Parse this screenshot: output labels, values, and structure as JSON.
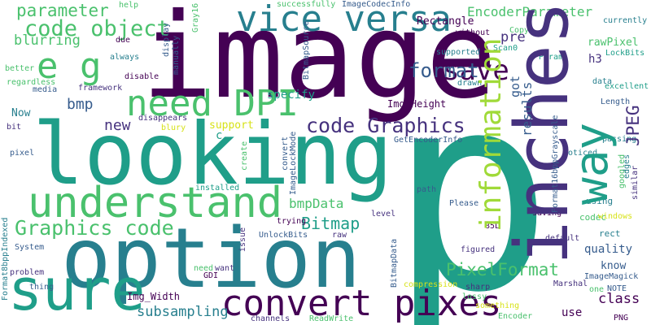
{
  "colors": {
    "purple": "#440154",
    "indigo": "#46327e",
    "blue": "#365c8d",
    "steel": "#277f8e",
    "teal": "#1f9e89",
    "green": "#4ac16d",
    "lime": "#a0da39",
    "yellow": "#d7e219"
  },
  "words": {
    "w0": "p",
    "w1": "image",
    "w2": "looking",
    "w3": "option",
    "w4": "inches",
    "w5": "sure",
    "w6": "understand",
    "w7": "way",
    "w8": "convert pixes",
    "w9": "vice versa",
    "w10": "information",
    "w11": "need DPI",
    "w12": "e g",
    "w13": "save",
    "w14": "code object",
    "w15": "parameter",
    "w16": "format",
    "w17": "code Graphics",
    "w18": "Graphics code",
    "w19": "PixelFormat",
    "w20": "EncoderParameter",
    "w21": "bmpData",
    "w22": "Bitmap",
    "w23": "JPEG",
    "w24": "new",
    "w25": "bmp",
    "w26": "blurring",
    "w27": "pre",
    "w28": "rawPixel",
    "w29": "subsampling",
    "w30": "Img_Height",
    "w31": "Img_Width",
    "w32": "Rectangle",
    "w33": "specify",
    "w34": "results",
    "w35": "got",
    "w36": "class",
    "w37": "quality",
    "w38": "know",
    "w39": "Now",
    "w40": "support",
    "w41": "codec",
    "w42": "using",
    "w43": "rect",
    "w44": "convert",
    "w45": "GetEncoderInfo",
    "w46": "Gray16",
    "w47": "ImageCodecInfo",
    "w48": "successfully",
    "w49": "help",
    "w50": "display",
    "w51": "manually",
    "w52": "due",
    "w53": "always",
    "w54": "disable",
    "w55": "framework",
    "w56": "media",
    "w57": "regardless",
    "w58": "better",
    "w59": "bit",
    "w60": "pixel",
    "w61": "BitmapSource",
    "w62": "supported",
    "w63": "Scan0",
    "w64": "without",
    "w65": "Copy",
    "w66": "Param",
    "w67": "currently",
    "w68": "LockBits",
    "w69": "h3",
    "w70": "excellent",
    "w71": "data",
    "w72": "drawn",
    "w73": "Length",
    "w74": "Format16bppGrayscale",
    "w75": "noticed",
    "w76": "passing",
    "w77": "googled",
    "w78": "edges",
    "w79": "similar",
    "w80": "windows",
    "w81": "default",
    "w82": "saving",
    "w83": "85L",
    "w84": "Please",
    "w85": "path",
    "w86": "level",
    "w87": "disappears",
    "w88": "blury",
    "w89": "create",
    "w90": "c",
    "w91": "ImageLockMode",
    "w92": "installed",
    "w93": "trying",
    "w94": "UnlockBits",
    "w95": "raw",
    "w96": "issue",
    "w97": "System",
    "w98": "Format8bppIndexed",
    "w99": "problem",
    "w100": "thing",
    "w101": "need",
    "w102": "want",
    "w103": "GDI",
    "w104": "BitmapData",
    "w105": "channels",
    "w106": "ReadWrite",
    "w107": "figured",
    "w108": "compression",
    "w109": "sharp",
    "w110": "lossy",
    "w111": "something",
    "w112": "Encoder",
    "w113": "Marshal",
    "w114": "ImageMagick",
    "w115": "one",
    "w116": "NOTE",
    "w117": "use",
    "w118": "PNG"
  }
}
